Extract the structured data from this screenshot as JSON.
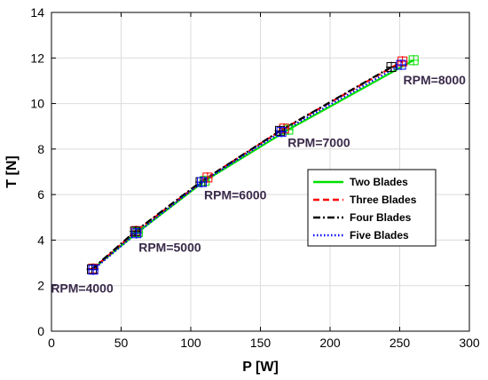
{
  "chart_data": {
    "type": "line",
    "xlabel": "P [W]",
    "ylabel": "T [N]",
    "xlim": [
      0,
      300
    ],
    "ylim": [
      0,
      14
    ],
    "xticks": [
      0,
      50,
      100,
      150,
      200,
      250,
      300
    ],
    "yticks": [
      0,
      2,
      4,
      6,
      8,
      10,
      12,
      14
    ],
    "grid": true,
    "legend_position": "center-right",
    "series": [
      {
        "name": "Two Blades",
        "color": "#00e000",
        "dash": "solid",
        "x": [
          30,
          62,
          110,
          170,
          260
        ],
        "y": [
          2.75,
          4.35,
          6.6,
          8.85,
          11.9
        ]
      },
      {
        "name": "Three Blades",
        "color": "#ff0000",
        "dash": "dashed",
        "x": [
          30,
          61,
          112,
          167,
          252
        ],
        "y": [
          2.75,
          4.4,
          6.75,
          8.9,
          11.85
        ]
      },
      {
        "name": "Four Blades",
        "color": "#000000",
        "dash": "dashdot",
        "x": [
          29,
          60,
          107,
          164,
          244
        ],
        "y": [
          2.72,
          4.38,
          6.55,
          8.8,
          11.6
        ]
      },
      {
        "name": "Five Blades",
        "color": "#0000ff",
        "dash": "dotted",
        "x": [
          30,
          61,
          108,
          165,
          251
        ],
        "y": [
          2.7,
          4.3,
          6.55,
          8.75,
          11.7
        ]
      }
    ],
    "annotations": [
      {
        "text": "RPM=4000",
        "x": 22,
        "y": 1.7
      },
      {
        "text": "RPM=5000",
        "x": 85,
        "y": 3.5
      },
      {
        "text": "RPM=6000",
        "x": 132,
        "y": 5.8
      },
      {
        "text": "RPM=7000",
        "x": 192,
        "y": 8.1
      },
      {
        "text": "RPM=8000",
        "x": 275,
        "y": 10.85
      }
    ]
  }
}
